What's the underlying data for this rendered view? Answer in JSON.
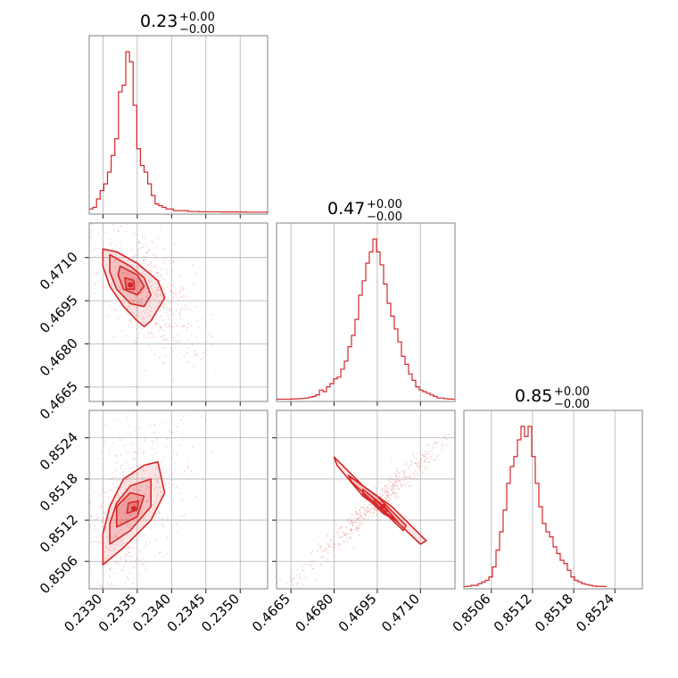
{
  "figure": {
    "type": "corner-plot"
  },
  "colors": {
    "series": "#d62728",
    "fill": "#f2b5b8",
    "grid": "#b0b0b0",
    "frame": "#808080"
  },
  "titles": [
    {
      "value": "0.23",
      "plus": "+0.00",
      "minus": "−0.00"
    },
    {
      "value": "0.47",
      "plus": "+0.00",
      "minus": "−0.00"
    },
    {
      "value": "0.85",
      "plus": "+0.00",
      "minus": "−0.00"
    }
  ],
  "chart_data": {
    "type": "corner",
    "parameters": [
      {
        "range": [
          0.2328,
          0.2354
        ],
        "ticks": [
          0.233,
          0.2335,
          0.234,
          0.2345,
          0.235
        ],
        "tick_labels": [
          "0.2330",
          "0.2335",
          "0.2340",
          "0.2345",
          "0.2350"
        ]
      },
      {
        "range": [
          0.466,
          0.4722
        ],
        "ticks": [
          0.4665,
          0.468,
          0.4695,
          0.471
        ],
        "tick_labels": [
          "0.4665",
          "0.4680",
          "0.4695",
          "0.4710"
        ]
      },
      {
        "range": [
          0.8502,
          0.8528
        ],
        "ticks": [
          0.8506,
          0.8512,
          0.8518,
          0.8524
        ],
        "tick_labels": [
          "0.8506",
          "0.8512",
          "0.8518",
          "0.8524"
        ]
      }
    ],
    "histograms": [
      {
        "bin_start": 0.2328,
        "bin_width": 5.33e-05,
        "counts": [
          2,
          3,
          8,
          13,
          17,
          24,
          34,
          44,
          72,
          76,
          96,
          90,
          64,
          38,
          28,
          24,
          17,
          10,
          5,
          4,
          3,
          2,
          2,
          1,
          1,
          1,
          1,
          0.5,
          0.5,
          0.5,
          0.3,
          0.3,
          0.3,
          0.3,
          0.3,
          0.3,
          0.2,
          0.2,
          0.2,
          0.2,
          0.2,
          0.2,
          0.2,
          0.1,
          0.1,
          0.1,
          0.1,
          0.1,
          0.1
        ]
      },
      {
        "bin_start": 0.466,
        "bin_width": 0.000124,
        "counts": [
          0.3,
          0.3,
          0.3,
          0.3,
          0.4,
          0.5,
          0.6,
          0.8,
          1,
          1.5,
          2,
          3,
          6,
          5,
          8,
          10,
          13,
          14,
          19,
          24,
          33,
          40,
          50,
          65,
          74,
          85,
          92,
          100,
          92,
          84,
          72,
          60,
          52,
          44,
          36,
          27,
          22,
          16,
          12,
          8,
          6,
          5,
          4,
          3,
          2,
          1,
          1,
          0.6,
          0.4,
          0.3
        ]
      },
      {
        "bin_start": 0.8502,
        "bin_width": 5.2e-05,
        "counts": [
          0.3,
          0.5,
          1,
          1,
          2,
          3,
          4,
          6,
          12,
          22,
          33,
          46,
          62,
          72,
          78,
          88,
          96,
          90,
          96,
          78,
          62,
          48,
          38,
          33,
          30,
          24,
          20,
          16,
          14,
          10,
          6,
          4,
          3,
          2,
          1.5,
          1,
          0.6,
          0.4,
          0.4,
          0.3
        ]
      }
    ],
    "contours": [
      {
        "panel": [
          1,
          0
        ],
        "levels": [
          {
            "points": [
              [
                0.233,
                0.4713
              ],
              [
                0.2332,
                0.4712
              ],
              [
                0.2335,
                0.4708
              ],
              [
                0.2338,
                0.4702
              ],
              [
                0.2339,
                0.4696
              ],
              [
                0.2338,
                0.4692
              ],
              [
                0.2337,
                0.4688
              ],
              [
                0.2336,
                0.4686
              ],
              [
                0.2335,
                0.4688
              ],
              [
                0.2333,
                0.4693
              ],
              [
                0.2331,
                0.47
              ],
              [
                0.233,
                0.4707
              ]
            ]
          },
          {
            "points": [
              [
                0.2331,
                0.4711
              ],
              [
                0.2334,
                0.4707
              ],
              [
                0.2336,
                0.4703
              ],
              [
                0.2337,
                0.4697
              ],
              [
                0.2336,
                0.4693
              ],
              [
                0.2334,
                0.4694
              ],
              [
                0.2332,
                0.4699
              ],
              [
                0.2331,
                0.4705
              ]
            ]
          },
          {
            "points": [
              [
                0.23325,
                0.4707
              ],
              [
                0.2335,
                0.4704
              ],
              [
                0.2336,
                0.47
              ],
              [
                0.2335,
                0.4697
              ],
              [
                0.2333,
                0.4699
              ],
              [
                0.23322,
                0.4704
              ]
            ]
          },
          {
            "points": [
              [
                0.23332,
                0.4703
              ],
              [
                0.23345,
                0.4702
              ],
              [
                0.23346,
                0.4699
              ],
              [
                0.23334,
                0.4699
              ]
            ]
          }
        ],
        "mode": [
          0.2334,
          0.47005
        ]
      },
      {
        "panel": [
          2,
          0
        ],
        "levels": [
          {
            "points": [
              [
                0.233,
                0.85055
              ],
              [
                0.2333,
                0.8508
              ],
              [
                0.2337,
                0.8512
              ],
              [
                0.2339,
                0.8516
              ],
              [
                0.2338,
                0.85205
              ],
              [
                0.2336,
                0.852
              ],
              [
                0.2333,
                0.8518
              ],
              [
                0.2331,
                0.8514
              ],
              [
                0.233,
                0.851
              ]
            ]
          },
          {
            "points": [
              [
                0.2331,
                0.85085
              ],
              [
                0.2334,
                0.85105
              ],
              [
                0.2337,
                0.8514
              ],
              [
                0.2337,
                0.8518
              ],
              [
                0.2334,
                0.8517
              ],
              [
                0.2332,
                0.85145
              ],
              [
                0.2331,
                0.85115
              ]
            ]
          },
          {
            "points": [
              [
                0.2332,
                0.8511
              ],
              [
                0.2335,
                0.85125
              ],
              [
                0.2336,
                0.85155
              ],
              [
                0.2334,
                0.8516
              ],
              [
                0.2332,
                0.8514
              ]
            ]
          },
          {
            "points": [
              [
                0.23335,
                0.8513
              ],
              [
                0.2335,
                0.85135
              ],
              [
                0.23352,
                0.85148
              ],
              [
                0.23337,
                0.85145
              ]
            ]
          }
        ],
        "mode": [
          0.23345,
          0.85137
        ]
      },
      {
        "panel": [
          2,
          1
        ],
        "levels": [
          {
            "points": [
              [
                0.468,
                0.85212
              ],
              [
                0.469,
                0.8517
              ],
              [
                0.47,
                0.8514
              ],
              [
                0.4712,
                0.8509
              ],
              [
                0.471,
                0.85085
              ],
              [
                0.47,
                0.85125
              ],
              [
                0.469,
                0.85155
              ],
              [
                0.4681,
                0.852
              ]
            ]
          },
          {
            "points": [
              [
                0.4685,
                0.85185
              ],
              [
                0.4695,
                0.85155
              ],
              [
                0.4705,
                0.85112
              ],
              [
                0.4704,
                0.85105
              ],
              [
                0.4694,
                0.85145
              ],
              [
                0.4686,
                0.85176
              ]
            ]
          },
          {
            "points": [
              [
                0.469,
                0.85165
              ],
              [
                0.4698,
                0.85138
              ],
              [
                0.4702,
                0.85118
              ],
              [
                0.4697,
                0.8513
              ],
              [
                0.469,
                0.85158
              ]
            ]
          },
          {
            "points": [
              [
                0.4694,
                0.8515
              ],
              [
                0.4699,
                0.85133
              ],
              [
                0.4697,
                0.85134
              ],
              [
                0.4694,
                0.85146
              ]
            ]
          }
        ],
        "mode": [
          0.4697,
          0.8514
        ]
      }
    ]
  }
}
